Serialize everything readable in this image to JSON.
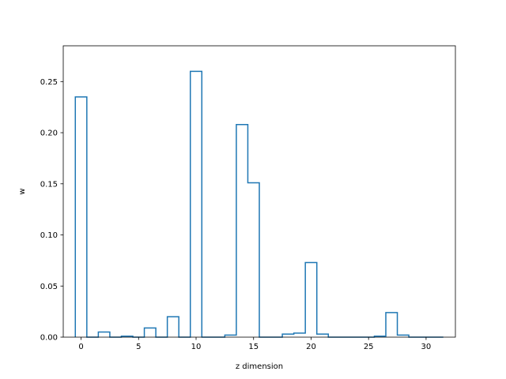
{
  "chart_data": {
    "type": "bar",
    "style": "step",
    "xlabel": "z dimension",
    "ylabel": "w",
    "xlim": [
      -1.55,
      32.55
    ],
    "ylim": [
      0,
      0.285
    ],
    "xticks": [
      0,
      5,
      10,
      15,
      20,
      25,
      30
    ],
    "xtick_labels": [
      "0",
      "5",
      "10",
      "15",
      "20",
      "25",
      "30"
    ],
    "yticks": [
      0.0,
      0.05,
      0.1,
      0.15,
      0.2,
      0.25
    ],
    "ytick_labels": [
      "0.00",
      "0.05",
      "0.10",
      "0.15",
      "0.20",
      "0.25"
    ],
    "x": [
      0,
      1,
      2,
      3,
      4,
      5,
      6,
      7,
      8,
      9,
      10,
      11,
      12,
      13,
      14,
      15,
      16,
      17,
      18,
      19,
      20,
      21,
      22,
      23,
      24,
      25,
      26,
      27,
      28,
      29,
      30,
      31
    ],
    "values": [
      0.235,
      0.0,
      0.005,
      0.0,
      0.001,
      0.0,
      0.009,
      0.0,
      0.02,
      0.0,
      0.26,
      0.0,
      0.0,
      0.002,
      0.208,
      0.151,
      0.0,
      0.0,
      0.003,
      0.004,
      0.073,
      0.003,
      0.0,
      0.0,
      0.0,
      0.0,
      0.001,
      0.024,
      0.002,
      0.0,
      0.0,
      0.0
    ],
    "grid": false,
    "line_color": "#1f77b4"
  }
}
